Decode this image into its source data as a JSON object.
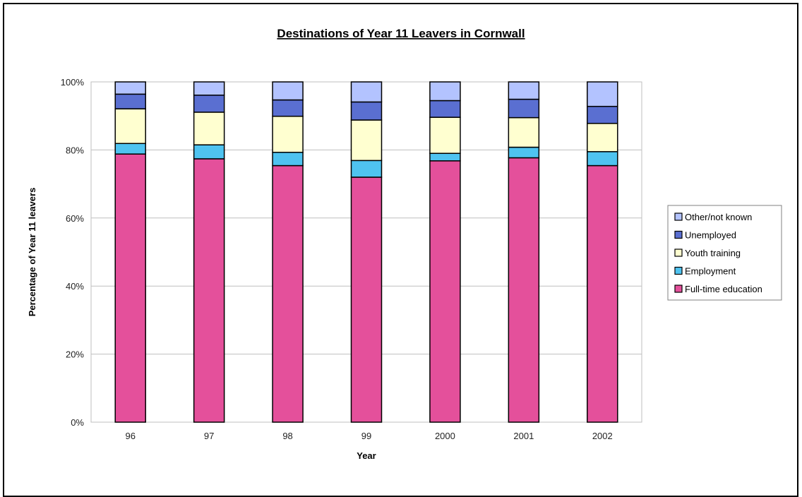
{
  "chart_data": {
    "type": "bar",
    "stacked": true,
    "percent_stacked": true,
    "title": "Destinations of Year 11 Leavers in Cornwall",
    "xlabel": "Year",
    "ylabel": "Percentage of Year 11 leavers",
    "categories": [
      "96",
      "97",
      "98",
      "99",
      "2000",
      "2001",
      "2002"
    ],
    "ylim": [
      0,
      100
    ],
    "y_ticks": [
      "0%",
      "20%",
      "40%",
      "60%",
      "80%",
      "100%"
    ],
    "y_tick_values": [
      0,
      20,
      40,
      60,
      80,
      100
    ],
    "grid": true,
    "legend_position": "right",
    "series": [
      {
        "name": "Full-time education",
        "color": "#e4509b",
        "values": [
          78.8,
          77.4,
          75.4,
          72.0,
          76.8,
          77.7,
          75.4
        ]
      },
      {
        "name": "Employment",
        "color": "#4fc3f0",
        "values": [
          3.1,
          4.1,
          3.9,
          4.9,
          2.2,
          3.1,
          4.1
        ]
      },
      {
        "name": "Youth training",
        "color": "#ffffd0",
        "values": [
          10.2,
          9.6,
          10.6,
          11.9,
          10.6,
          8.7,
          8.3
        ]
      },
      {
        "name": "Unemployed",
        "color": "#5a6fd1",
        "values": [
          4.3,
          5.0,
          4.8,
          5.3,
          4.9,
          5.4,
          5.0
        ]
      },
      {
        "name": "Other/not known",
        "color": "#b3c3ff",
        "values": [
          3.6,
          3.9,
          5.3,
          5.9,
          5.5,
          5.1,
          7.2
        ]
      }
    ]
  }
}
